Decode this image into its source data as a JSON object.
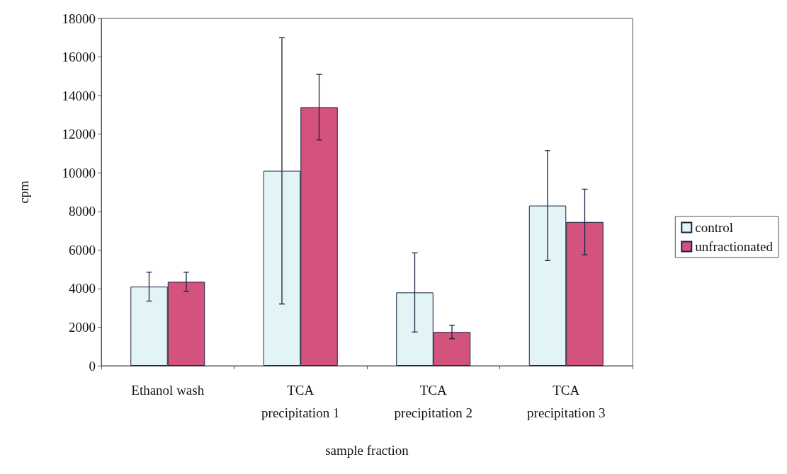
{
  "chart_data": {
    "type": "bar",
    "xlabel": "sample fraction",
    "ylabel": "cpm",
    "categories": [
      "Ethanol wash",
      "TCA\nprecipitation 1",
      "TCA\nprecipitation 2",
      "TCA\nprecipitation 3"
    ],
    "series": [
      {
        "name": "control",
        "color": "#e3f4f6",
        "values": [
          4100,
          10100,
          3800,
          8300
        ],
        "errors": [
          750,
          6900,
          2050,
          2850
        ]
      },
      {
        "name": "unfractionated",
        "color": "#d4537e",
        "values": [
          4350,
          13400,
          1750,
          7450
        ],
        "errors": [
          500,
          1700,
          350,
          1700
        ]
      }
    ],
    "ylim": [
      0,
      18000
    ],
    "yticks": [
      0,
      2000,
      4000,
      6000,
      8000,
      10000,
      12000,
      14000,
      16000,
      18000
    ],
    "grid": false,
    "legend": "right"
  }
}
